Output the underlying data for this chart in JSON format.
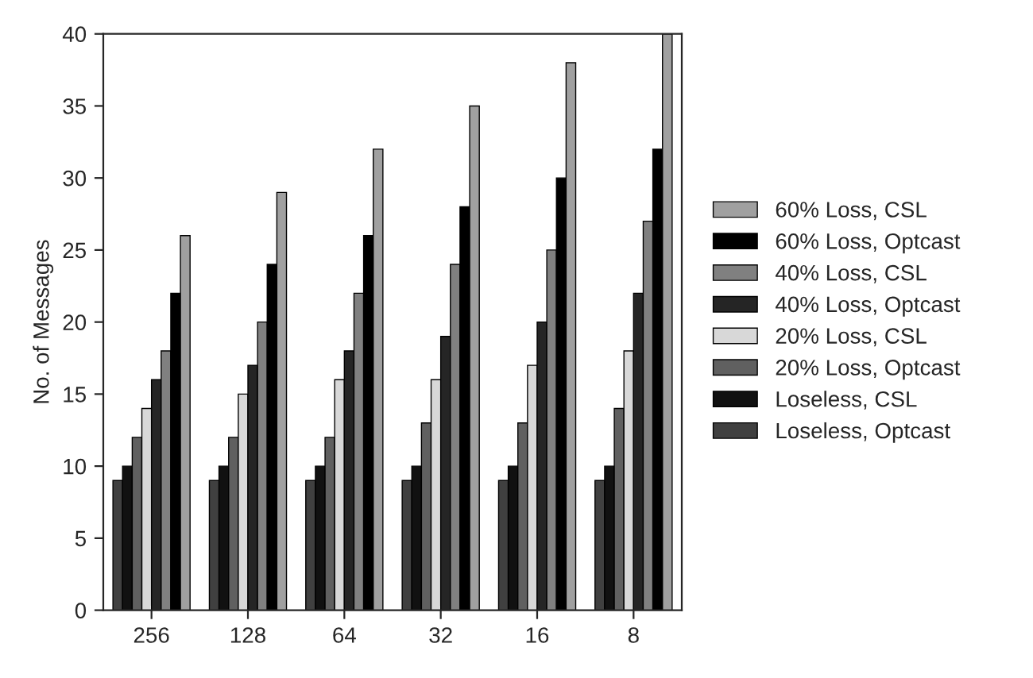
{
  "chart_data": {
    "type": "bar",
    "ylabel": "No. of Messages",
    "categories": [
      "256",
      "128",
      "64",
      "32",
      "16",
      "8"
    ],
    "series": [
      {
        "name": "Loseless, Optcast",
        "color": "#404040",
        "values": [
          9,
          9,
          9,
          9,
          9,
          9
        ]
      },
      {
        "name": "Loseless, CSL",
        "color": "#111111",
        "values": [
          10,
          10,
          10,
          10,
          10,
          10
        ]
      },
      {
        "name": "20% Loss, Optcast",
        "color": "#606060",
        "values": [
          12,
          12,
          12,
          13,
          13,
          14
        ]
      },
      {
        "name": "20% Loss, CSL",
        "color": "#d8d8d8",
        "values": [
          14,
          15,
          16,
          16,
          17,
          18
        ]
      },
      {
        "name": "40% Loss, Optcast",
        "color": "#252525",
        "values": [
          16,
          17,
          18,
          19,
          20,
          22
        ]
      },
      {
        "name": "40% Loss, CSL",
        "color": "#808080",
        "values": [
          18,
          20,
          22,
          24,
          25,
          27
        ]
      },
      {
        "name": "60% Loss, Optcast",
        "color": "#000000",
        "values": [
          22,
          24,
          26,
          28,
          30,
          32
        ]
      },
      {
        "name": "60% Loss, CSL",
        "color": "#a0a0a0",
        "values": [
          26,
          29,
          32,
          35,
          38,
          40
        ]
      }
    ],
    "ylim": [
      0,
      40
    ],
    "yticks": [
      0,
      5,
      10,
      15,
      20,
      25,
      30,
      35,
      40
    ],
    "legend": "right"
  }
}
